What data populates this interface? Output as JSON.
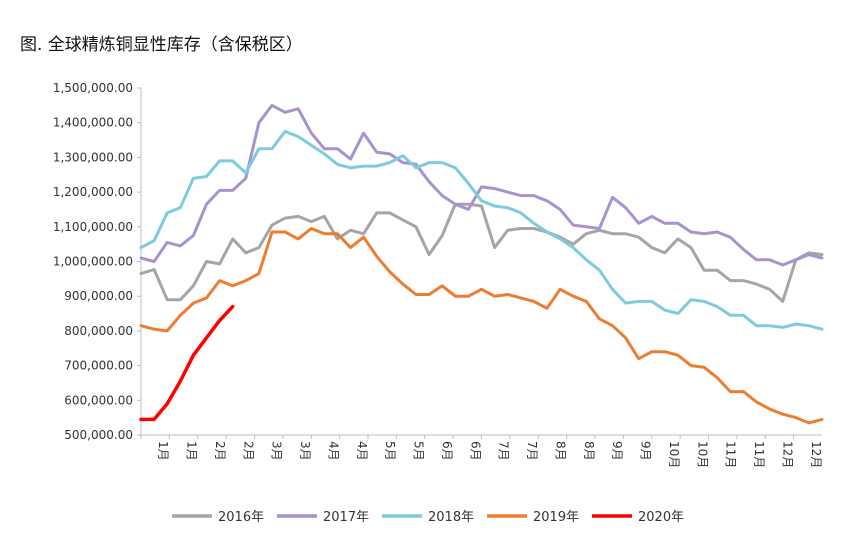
{
  "chart_data": {
    "type": "line",
    "title": "图. 全球精炼铜显性库存（含保税区）",
    "ylim": [
      500000,
      1500000
    ],
    "y_ticks": [
      "1,500,000.00",
      "1,400,000.00",
      "1,300,000.00",
      "1,200,000.00",
      "1,100,000.00",
      "1,000,000.00",
      "900,000.00",
      "800,000.00",
      "700,000.00",
      "600,000.00",
      "500,000.00"
    ],
    "x_tick_labels": [
      "1月",
      "1月",
      "2月",
      "2月",
      "3月",
      "3月",
      "4月",
      "4月",
      "5月",
      "5月",
      "6月",
      "6月",
      "7月",
      "7月",
      "8月",
      "8月",
      "9月",
      "9月",
      "10月",
      "10月",
      "11月",
      "11月",
      "12月",
      "12月"
    ],
    "weeks_per_year": 53,
    "grid": false,
    "legend_position": "bottom",
    "series": [
      {
        "name": "2016年",
        "color": "#a5a5a5",
        "values": [
          965000,
          977000,
          890000,
          890000,
          930000,
          1000000,
          993000,
          1065000,
          1025000,
          1040000,
          1105000,
          1125000,
          1130000,
          1115000,
          1130000,
          1065000,
          1090000,
          1080000,
          1140000,
          1140000,
          1120000,
          1100000,
          1020000,
          1075000,
          1165000,
          1165000,
          1160000,
          1040000,
          1090000,
          1095000,
          1095000,
          1085000,
          1070000,
          1050000,
          1080000,
          1090000,
          1080000,
          1080000,
          1070000,
          1040000,
          1025000,
          1065000,
          1040000,
          975000,
          975000,
          945000,
          945000,
          935000,
          920000,
          885000,
          1005000,
          1025000,
          1020000
        ]
      },
      {
        "name": "2017年",
        "color": "#a992d0",
        "values": [
          1010000,
          1000000,
          1055000,
          1045000,
          1075000,
          1165000,
          1205000,
          1205000,
          1240000,
          1400000,
          1450000,
          1430000,
          1440000,
          1370000,
          1325000,
          1325000,
          1295000,
          1370000,
          1315000,
          1310000,
          1285000,
          1280000,
          1230000,
          1190000,
          1165000,
          1150000,
          1215000,
          1210000,
          1200000,
          1190000,
          1190000,
          1175000,
          1150000,
          1105000,
          1100000,
          1095000,
          1185000,
          1155000,
          1110000,
          1130000,
          1110000,
          1110000,
          1085000,
          1080000,
          1085000,
          1070000,
          1035000,
          1005000,
          1005000,
          990000,
          1005000,
          1020000,
          1010000
        ]
      },
      {
        "name": "2018年",
        "color": "#7ecbe0",
        "values": [
          1040000,
          1060000,
          1140000,
          1155000,
          1240000,
          1245000,
          1290000,
          1290000,
          1255000,
          1325000,
          1325000,
          1375000,
          1360000,
          1335000,
          1310000,
          1280000,
          1270000,
          1275000,
          1275000,
          1285000,
          1305000,
          1270000,
          1285000,
          1285000,
          1270000,
          1225000,
          1175000,
          1160000,
          1155000,
          1140000,
          1110000,
          1085000,
          1065000,
          1040000,
          1005000,
          975000,
          920000,
          880000,
          885000,
          885000,
          860000,
          850000,
          890000,
          885000,
          870000,
          845000,
          845000,
          815000,
          815000,
          810000,
          820000,
          815000,
          805000
        ]
      },
      {
        "name": "2019年",
        "color": "#ed7d31",
        "values": [
          815000,
          805000,
          800000,
          845000,
          880000,
          895000,
          945000,
          930000,
          945000,
          965000,
          1085000,
          1085000,
          1065000,
          1095000,
          1080000,
          1080000,
          1040000,
          1070000,
          1015000,
          970000,
          935000,
          905000,
          905000,
          930000,
          900000,
          900000,
          920000,
          900000,
          905000,
          895000,
          885000,
          865000,
          920000,
          900000,
          885000,
          835000,
          815000,
          780000,
          720000,
          740000,
          740000,
          730000,
          700000,
          695000,
          665000,
          625000,
          625000,
          595000,
          575000,
          560000,
          550000,
          535000,
          545000
        ]
      },
      {
        "name": "2020年",
        "color": "#ff0000",
        "values": [
          545000,
          545000,
          590000,
          655000,
          730000,
          780000,
          830000,
          870000
        ]
      }
    ]
  }
}
